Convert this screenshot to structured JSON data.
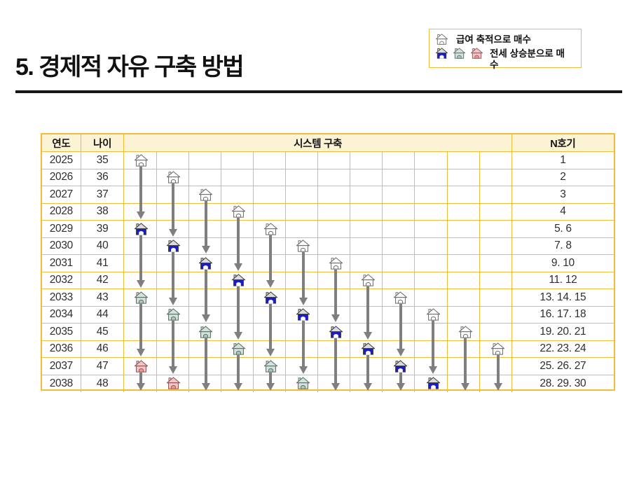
{
  "title": "5. 경제적 자유 구축 방법",
  "legend": {
    "salary_label": "급여 축적으로 매수",
    "salary_icon": "white-house-icon",
    "jeonse_label": "전세 상승분으로 매수",
    "jeonse_icons": [
      "blue",
      "green",
      "pink"
    ]
  },
  "colors": {
    "table_border": "#eebe3a",
    "header_bg": "#fcf3d4",
    "arrow": "#7f7f7f",
    "title_color": "#111111",
    "cell_text": "#2e2e2e"
  },
  "house_styles": {
    "white": {
      "roof": "#ffffff",
      "body": "#ffffff",
      "door": "#ffffff",
      "stroke": "#6f6f6f",
      "doorStroke": "#6f6f6f"
    },
    "blue": {
      "roof": "#dcdcdc",
      "body": "#1a1ace",
      "door": "#ffffff",
      "stroke": "#3f3f3f",
      "doorStroke": "#e8e8e8"
    },
    "green": {
      "roof": "#d3e2da",
      "body": "#d3e2da",
      "door": "#aec8be",
      "stroke": "#5d6f66",
      "doorStroke": "#5d6f66"
    },
    "pink": {
      "roof": "#f3c5c5",
      "body": "#f3c5c5",
      "door": "#e59a9a",
      "stroke": "#8d5555",
      "doorStroke": "#a85454"
    }
  },
  "table": {
    "headers": {
      "year": "연도",
      "age": "나이",
      "system": "시스템 구축",
      "unit": "N호기"
    },
    "system_columns": 12,
    "rows": [
      {
        "year": "2025",
        "age": "35",
        "units": "1"
      },
      {
        "year": "2026",
        "age": "36",
        "units": "2"
      },
      {
        "year": "2027",
        "age": "37",
        "units": "3"
      },
      {
        "year": "2028",
        "age": "38",
        "units": "4"
      },
      {
        "year": "2029",
        "age": "39",
        "units": "5. 6"
      },
      {
        "year": "2030",
        "age": "40",
        "units": "7. 8"
      },
      {
        "year": "2031",
        "age": "41",
        "units": "9. 10"
      },
      {
        "year": "2032",
        "age": "42",
        "units": "11. 12"
      },
      {
        "year": "2033",
        "age": "43",
        "units": "13. 14. 15"
      },
      {
        "year": "2034",
        "age": "44",
        "units": "16. 17. 18"
      },
      {
        "year": "2035",
        "age": "45",
        "units": "19. 20. 21"
      },
      {
        "year": "2036",
        "age": "46",
        "units": "22. 23. 24"
      },
      {
        "year": "2037",
        "age": "47",
        "units": "25. 26. 27"
      },
      {
        "year": "2038",
        "age": "48",
        "units": "28. 29. 30"
      }
    ],
    "houses": [
      {
        "col": 1,
        "year": 2025,
        "type": "white"
      },
      {
        "col": 2,
        "year": 2026,
        "type": "white"
      },
      {
        "col": 3,
        "year": 2027,
        "type": "white"
      },
      {
        "col": 4,
        "year": 2028,
        "type": "white"
      },
      {
        "col": 5,
        "year": 2029,
        "type": "white"
      },
      {
        "col": 1,
        "year": 2029,
        "type": "blue"
      },
      {
        "col": 6,
        "year": 2030,
        "type": "white"
      },
      {
        "col": 2,
        "year": 2030,
        "type": "blue"
      },
      {
        "col": 7,
        "year": 2031,
        "type": "white"
      },
      {
        "col": 3,
        "year": 2031,
        "type": "blue"
      },
      {
        "col": 8,
        "year": 2032,
        "type": "white"
      },
      {
        "col": 4,
        "year": 2032,
        "type": "blue"
      },
      {
        "col": 9,
        "year": 2033,
        "type": "white"
      },
      {
        "col": 5,
        "year": 2033,
        "type": "blue"
      },
      {
        "col": 1,
        "year": 2033,
        "type": "green"
      },
      {
        "col": 10,
        "year": 2034,
        "type": "white"
      },
      {
        "col": 6,
        "year": 2034,
        "type": "blue"
      },
      {
        "col": 2,
        "year": 2034,
        "type": "green"
      },
      {
        "col": 11,
        "year": 2035,
        "type": "white"
      },
      {
        "col": 7,
        "year": 2035,
        "type": "blue"
      },
      {
        "col": 3,
        "year": 2035,
        "type": "green"
      },
      {
        "col": 12,
        "year": 2036,
        "type": "white"
      },
      {
        "col": 8,
        "year": 2036,
        "type": "blue"
      },
      {
        "col": 4,
        "year": 2036,
        "type": "green"
      },
      {
        "col": 9,
        "year": 2037,
        "type": "blue"
      },
      {
        "col": 5,
        "year": 2037,
        "type": "green"
      },
      {
        "col": 1,
        "year": 2037,
        "type": "pink"
      },
      {
        "col": 10,
        "year": 2038,
        "type": "blue"
      },
      {
        "col": 6,
        "year": 2038,
        "type": "green"
      },
      {
        "col": 2,
        "year": 2038,
        "type": "pink"
      }
    ],
    "arrows": [
      {
        "col": 1,
        "from": 2025,
        "head": 2028
      },
      {
        "col": 1,
        "from": 2029,
        "head": 2032
      },
      {
        "col": 1,
        "from": 2033,
        "head": 2036
      },
      {
        "col": 1,
        "from": 2037,
        "head": 2038
      },
      {
        "col": 2,
        "from": 2026,
        "head": 2029
      },
      {
        "col": 2,
        "from": 2030,
        "head": 2033
      },
      {
        "col": 2,
        "from": 2034,
        "head": 2037
      },
      {
        "col": 3,
        "from": 2027,
        "head": 2030
      },
      {
        "col": 3,
        "from": 2031,
        "head": 2034
      },
      {
        "col": 3,
        "from": 2035,
        "head": 2038
      },
      {
        "col": 4,
        "from": 2028,
        "head": 2031
      },
      {
        "col": 4,
        "from": 2032,
        "head": 2035
      },
      {
        "col": 4,
        "from": 2036,
        "head": 2038
      },
      {
        "col": 5,
        "from": 2029,
        "head": 2032
      },
      {
        "col": 5,
        "from": 2033,
        "head": 2036
      },
      {
        "col": 5,
        "from": 2037,
        "head": 2038
      },
      {
        "col": 6,
        "from": 2030,
        "head": 2033
      },
      {
        "col": 6,
        "from": 2034,
        "head": 2037
      },
      {
        "col": 7,
        "from": 2031,
        "head": 2034
      },
      {
        "col": 7,
        "from": 2035,
        "head": 2038
      },
      {
        "col": 8,
        "from": 2032,
        "head": 2035
      },
      {
        "col": 8,
        "from": 2036,
        "head": 2038
      },
      {
        "col": 9,
        "from": 2033,
        "head": 2036
      },
      {
        "col": 9,
        "from": 2037,
        "head": 2038
      },
      {
        "col": 10,
        "from": 2034,
        "head": 2037
      },
      {
        "col": 11,
        "from": 2035,
        "head": 2038
      },
      {
        "col": 12,
        "from": 2036,
        "head": 2038
      }
    ]
  }
}
